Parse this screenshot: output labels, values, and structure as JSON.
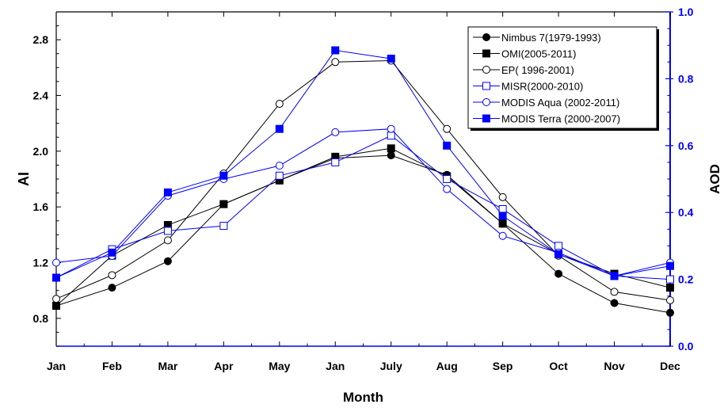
{
  "chart_data": {
    "type": "line",
    "xlabel": "Month",
    "ylabel_left": "AI",
    "ylabel_right": "AOD",
    "categories": [
      "Jan",
      "Feb",
      "Mar",
      "Apr",
      "May",
      "Jan",
      "July",
      "Aug",
      "Sep",
      "Oct",
      "Nov",
      "Dec"
    ],
    "y_left": {
      "min": 0.6,
      "max": 3.0,
      "ticks": [
        0.8,
        1.2,
        1.6,
        2.0,
        2.4,
        2.8
      ],
      "tick_labels": [
        "0.8",
        "1.2",
        "1.6",
        "2.0",
        "2.4",
        "2.8"
      ]
    },
    "y_right": {
      "min": 0.0,
      "max": 1.0,
      "ticks": [
        0.0,
        0.2,
        0.4,
        0.6,
        0.8,
        1.0
      ],
      "tick_labels": [
        "0.0",
        "0.2",
        "0.4",
        "0.6",
        "0.8",
        "1.0"
      ],
      "color": "#0000ff"
    },
    "legend_position": "top-right",
    "series": [
      {
        "name": "Nimbus 7(1979-1993)",
        "axis": "left",
        "color": "#000000",
        "marker": "circle-filled",
        "values": [
          0.89,
          1.02,
          1.21,
          1.62,
          1.79,
          1.95,
          1.97,
          1.83,
          1.48,
          1.12,
          0.91,
          0.84
        ]
      },
      {
        "name": "OMI(2005-2011)",
        "axis": "left",
        "color": "#000000",
        "marker": "square-filled",
        "values": [
          0.89,
          1.25,
          1.47,
          1.62,
          1.79,
          1.96,
          2.02,
          1.82,
          1.48,
          1.26,
          1.12,
          1.02
        ]
      },
      {
        "name": "EP( 1996-2001)",
        "axis": "left",
        "color": "#000000",
        "marker": "circle-open",
        "values": [
          0.94,
          1.11,
          1.36,
          1.84,
          2.34,
          2.64,
          2.65,
          2.16,
          1.67,
          1.25,
          0.99,
          0.93
        ]
      },
      {
        "name": "MISR(2000-2010)",
        "axis": "right",
        "color": "#0000ff",
        "marker": "square-open",
        "values": [
          0.205,
          0.29,
          0.345,
          0.36,
          0.51,
          0.55,
          0.63,
          0.5,
          0.41,
          0.3,
          0.21,
          0.2
        ]
      },
      {
        "name": "MODIS Aqua (2002-2011)",
        "axis": "right",
        "color": "#0000ff",
        "marker": "circle-open",
        "values": [
          0.25,
          0.27,
          0.45,
          0.5,
          0.54,
          0.64,
          0.65,
          0.47,
          0.33,
          0.28,
          0.21,
          0.25
        ]
      },
      {
        "name": "MODIS Terra (2000-2007)",
        "axis": "right",
        "color": "#0000ff",
        "marker": "square-filled",
        "values": [
          0.205,
          0.28,
          0.46,
          0.51,
          0.65,
          0.885,
          0.86,
          0.6,
          0.39,
          0.275,
          0.21,
          0.24
        ]
      }
    ]
  }
}
